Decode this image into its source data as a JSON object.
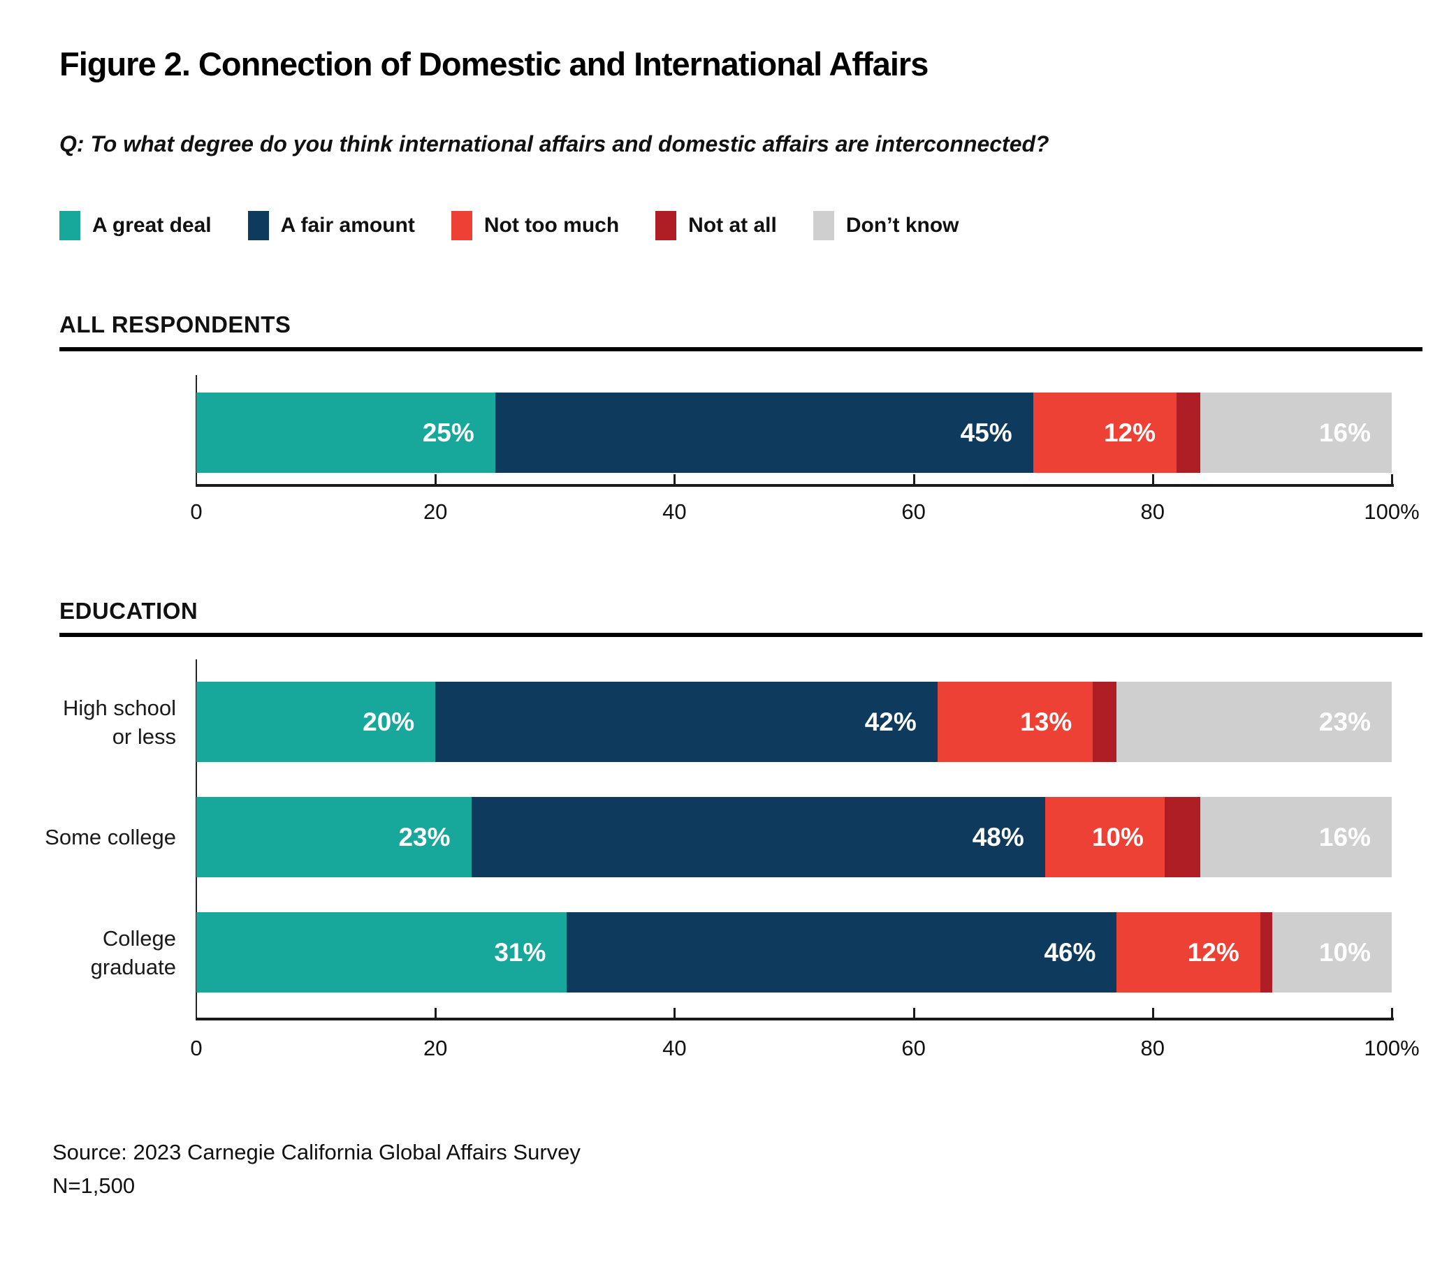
{
  "title": "Figure 2. Connection of Domestic and International Affairs",
  "question": "Q: To what degree do you think international affairs and domestic affairs are interconnected?",
  "colors": {
    "a_great_deal": "#18A79B",
    "a_fair_amount": "#0E3A5E",
    "not_too_much": "#EE4136",
    "not_at_all": "#AF1E25",
    "dont_know": "#CFCFCF"
  },
  "legend": {
    "items": [
      {
        "label": "A great deal",
        "color": "a_great_deal"
      },
      {
        "label": "A fair amount",
        "color": "a_fair_amount"
      },
      {
        "label": "Not too much",
        "color": "not_too_much"
      },
      {
        "label": "Not at all",
        "color": "not_at_all"
      },
      {
        "label": "Don’t know",
        "color": "dont_know"
      }
    ]
  },
  "sections": [
    {
      "id": "all",
      "header": "ALL RESPONDENTS"
    },
    {
      "id": "education",
      "header": "EDUCATION"
    }
  ],
  "chart_data": {
    "type": "bar",
    "orientation": "horizontal-stacked",
    "legend_position": "top",
    "xlim": [
      0,
      100
    ],
    "x_ticks": [
      0,
      20,
      40,
      60,
      80,
      100
    ],
    "x_tick_labels": [
      "0",
      "20",
      "40",
      "60",
      "80",
      "100%"
    ],
    "series_names": [
      "A great deal",
      "A fair amount",
      "Not too much",
      "Not at all",
      "Don't know"
    ],
    "series_color_keys": [
      "a_great_deal",
      "a_fair_amount",
      "not_too_much",
      "not_at_all",
      "dont_know"
    ],
    "groups": [
      {
        "section": "all",
        "category": "All respondents",
        "category_lines": [],
        "values": [
          25,
          45,
          12,
          2,
          16
        ],
        "labels": [
          "25%",
          "45%",
          "12%",
          null,
          "16%"
        ]
      },
      {
        "section": "education",
        "category": "High school or less",
        "category_lines": [
          "High school",
          "or less"
        ],
        "values": [
          20,
          42,
          13,
          2,
          23
        ],
        "labels": [
          "20%",
          "42%",
          "13%",
          null,
          "23%"
        ]
      },
      {
        "section": "education",
        "category": "Some college",
        "category_lines": [
          "Some college"
        ],
        "values": [
          23,
          48,
          10,
          3,
          16
        ],
        "labels": [
          "23%",
          "48%",
          "10%",
          null,
          "16%"
        ]
      },
      {
        "section": "education",
        "category": "College graduate",
        "category_lines": [
          "College",
          "graduate"
        ],
        "values": [
          31,
          46,
          12,
          1,
          10
        ],
        "labels": [
          "31%",
          "46%",
          "12%",
          null,
          "10%"
        ]
      }
    ]
  },
  "footer": {
    "source": "Source: 2023 Carnegie California Global Affairs Survey",
    "n": "N=1,500"
  }
}
